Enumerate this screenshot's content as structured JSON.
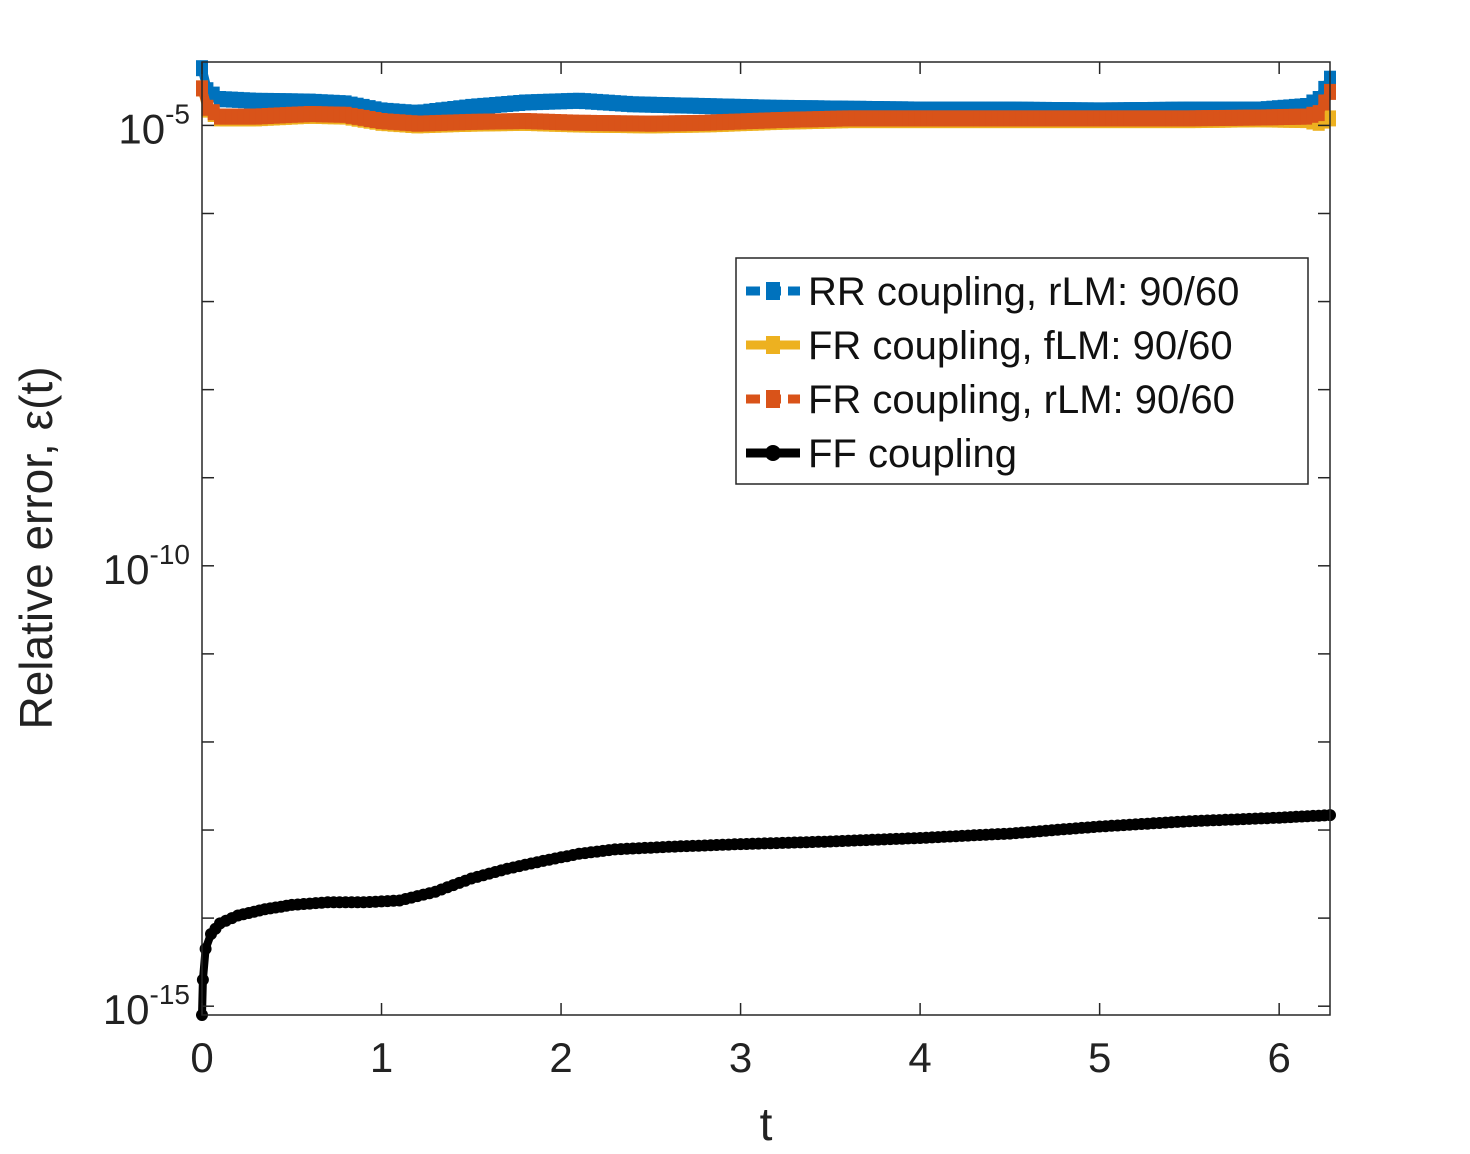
{
  "chart_data": {
    "type": "line",
    "xlabel": "t",
    "ylabel": "Relative error, ε(t)",
    "xlim": [
      0,
      6.2832
    ],
    "ylim_log10": [
      -15.1,
      -4.28
    ],
    "y_scale": "log",
    "x_ticks": [
      "0",
      "1",
      "2",
      "3",
      "4",
      "5",
      "6"
    ],
    "x_tick_values": [
      0,
      1,
      2,
      3,
      4,
      5,
      6
    ],
    "y_ticks": [
      {
        "base": "10",
        "exp": "-5",
        "log10": -5
      },
      {
        "base": "10",
        "exp": "-10",
        "log10": -10
      },
      {
        "base": "10",
        "exp": "-15",
        "log10": -15
      }
    ],
    "grid": false,
    "legend_position": "upper-right",
    "series": [
      {
        "name": "RR coupling, rLM: 90/60",
        "color": "#0072BD",
        "marker": "square",
        "dash": true,
        "points_log10": [
          [
            0,
            -4.35
          ],
          [
            0.03,
            -4.6
          ],
          [
            0.1,
            -4.7
          ],
          [
            0.3,
            -4.72
          ],
          [
            0.6,
            -4.73
          ],
          [
            0.8,
            -4.75
          ],
          [
            1.0,
            -4.83
          ],
          [
            1.2,
            -4.86
          ],
          [
            1.5,
            -4.79
          ],
          [
            1.8,
            -4.74
          ],
          [
            2.1,
            -4.72
          ],
          [
            2.4,
            -4.76
          ],
          [
            2.8,
            -4.78
          ],
          [
            3.2,
            -4.8
          ],
          [
            3.6,
            -4.81
          ],
          [
            4.0,
            -4.82
          ],
          [
            4.5,
            -4.82
          ],
          [
            5.0,
            -4.83
          ],
          [
            5.5,
            -4.82
          ],
          [
            5.9,
            -4.82
          ],
          [
            6.15,
            -4.78
          ],
          [
            6.22,
            -4.7
          ],
          [
            6.2832,
            -4.47
          ]
        ]
      },
      {
        "name": "FR coupling, fLM: 90/60",
        "color": "#EDB120",
        "marker": "square",
        "dash": false,
        "points_log10": [
          [
            0,
            -4.58
          ],
          [
            0.03,
            -4.82
          ],
          [
            0.1,
            -4.92
          ],
          [
            0.3,
            -4.92
          ],
          [
            0.6,
            -4.89
          ],
          [
            0.8,
            -4.9
          ],
          [
            1.0,
            -4.97
          ],
          [
            1.2,
            -5.0
          ],
          [
            1.5,
            -4.98
          ],
          [
            1.8,
            -4.97
          ],
          [
            2.1,
            -4.99
          ],
          [
            2.5,
            -5.0
          ],
          [
            2.8,
            -4.99
          ],
          [
            3.2,
            -4.96
          ],
          [
            3.6,
            -4.94
          ],
          [
            4.0,
            -4.94
          ],
          [
            4.5,
            -4.94
          ],
          [
            5.0,
            -4.94
          ],
          [
            5.5,
            -4.94
          ],
          [
            5.9,
            -4.93
          ],
          [
            6.15,
            -4.94
          ],
          [
            6.22,
            -4.97
          ],
          [
            6.2832,
            -4.92
          ]
        ]
      },
      {
        "name": "FR coupling, rLM: 90/60",
        "color": "#D95319",
        "marker": "square",
        "dash": true,
        "points_log10": [
          [
            0,
            -4.58
          ],
          [
            0.03,
            -4.8
          ],
          [
            0.1,
            -4.9
          ],
          [
            0.3,
            -4.9
          ],
          [
            0.6,
            -4.87
          ],
          [
            0.8,
            -4.88
          ],
          [
            1.0,
            -4.95
          ],
          [
            1.2,
            -4.98
          ],
          [
            1.5,
            -4.96
          ],
          [
            1.8,
            -4.95
          ],
          [
            2.1,
            -4.97
          ],
          [
            2.5,
            -4.98
          ],
          [
            2.8,
            -4.97
          ],
          [
            3.2,
            -4.94
          ],
          [
            3.6,
            -4.92
          ],
          [
            4.0,
            -4.92
          ],
          [
            4.5,
            -4.92
          ],
          [
            5.0,
            -4.92
          ],
          [
            5.5,
            -4.92
          ],
          [
            5.9,
            -4.91
          ],
          [
            6.15,
            -4.9
          ],
          [
            6.22,
            -4.86
          ],
          [
            6.2832,
            -4.62
          ]
        ]
      },
      {
        "name": "FF coupling",
        "color": "#000000",
        "marker": "circle",
        "dash": false,
        "points_log10": [
          [
            0,
            -15.1
          ],
          [
            0.005,
            -14.7
          ],
          [
            0.02,
            -14.35
          ],
          [
            0.05,
            -14.18
          ],
          [
            0.1,
            -14.06
          ],
          [
            0.2,
            -13.97
          ],
          [
            0.35,
            -13.9
          ],
          [
            0.5,
            -13.85
          ],
          [
            0.7,
            -13.82
          ],
          [
            0.9,
            -13.82
          ],
          [
            1.1,
            -13.8
          ],
          [
            1.3,
            -13.7
          ],
          [
            1.5,
            -13.55
          ],
          [
            1.7,
            -13.44
          ],
          [
            1.9,
            -13.35
          ],
          [
            2.1,
            -13.27
          ],
          [
            2.3,
            -13.22
          ],
          [
            2.6,
            -13.19
          ],
          [
            3.0,
            -13.16
          ],
          [
            3.5,
            -13.13
          ],
          [
            4.0,
            -13.09
          ],
          [
            4.5,
            -13.04
          ],
          [
            5.0,
            -12.96
          ],
          [
            5.5,
            -12.9
          ],
          [
            6.0,
            -12.86
          ],
          [
            6.2832,
            -12.83
          ]
        ]
      }
    ]
  }
}
